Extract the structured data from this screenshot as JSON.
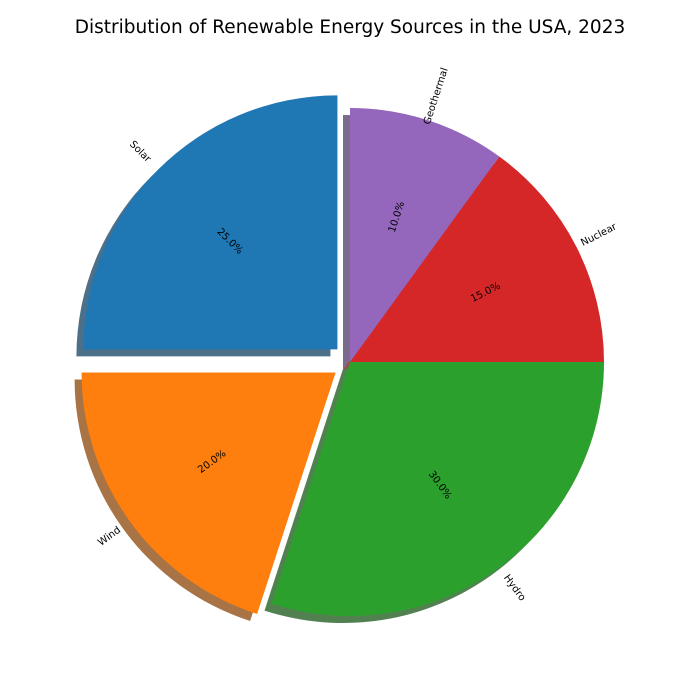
{
  "chart_data": {
    "type": "pie",
    "title": "Distribution of Renewable Energy Sources in the USA, 2023",
    "start_angle_deg": 90,
    "direction": "counterclockwise",
    "shadow": true,
    "label_rotation": "radial",
    "slices": [
      {
        "label": "Solar",
        "value": 25,
        "pct_label": "25.0%",
        "color": "#1f77b4",
        "exploded": true
      },
      {
        "label": "Wind",
        "value": 20,
        "pct_label": "20.0%",
        "color": "#ff7f0e",
        "exploded": true
      },
      {
        "label": "Hydro",
        "value": 30,
        "pct_label": "30.0%",
        "color": "#2ca02c",
        "exploded": false
      },
      {
        "label": "Nuclear",
        "value": 15,
        "pct_label": "15.0%",
        "color": "#d62728",
        "exploded": false
      },
      {
        "label": "Geothermal",
        "value": 10,
        "pct_label": "10.0%",
        "color": "#9467bd",
        "exploded": false
      }
    ]
  }
}
